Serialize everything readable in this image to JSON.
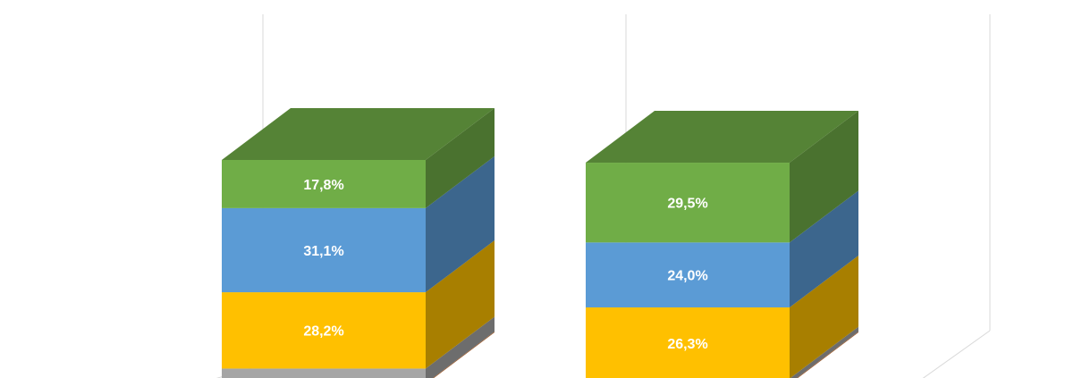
{
  "chart_data": {
    "type": "bar",
    "stacked": true,
    "three_d": true,
    "categories": [
      "",
      ""
    ],
    "series": [
      {
        "color": "#ed7d31",
        "values": [
          0.3,
          0.3
        ]
      },
      {
        "color": "#a5a5a5",
        "values": [
          5.5,
          1.8
        ]
      },
      {
        "color": "#ffc000",
        "values": [
          28.2,
          26.3
        ]
      },
      {
        "color": "#5b9bd5",
        "values": [
          31.1,
          24.0
        ]
      },
      {
        "color": "#70ad47",
        "values": [
          17.8,
          29.5
        ]
      }
    ],
    "data_labels": [
      [
        "",
        ""
      ],
      [
        "",
        ""
      ],
      [
        "28,2%",
        "26,3%"
      ],
      [
        "31,1%",
        "24,0%"
      ],
      [
        "17,8%",
        "29,5%"
      ]
    ],
    "legend": "none"
  }
}
